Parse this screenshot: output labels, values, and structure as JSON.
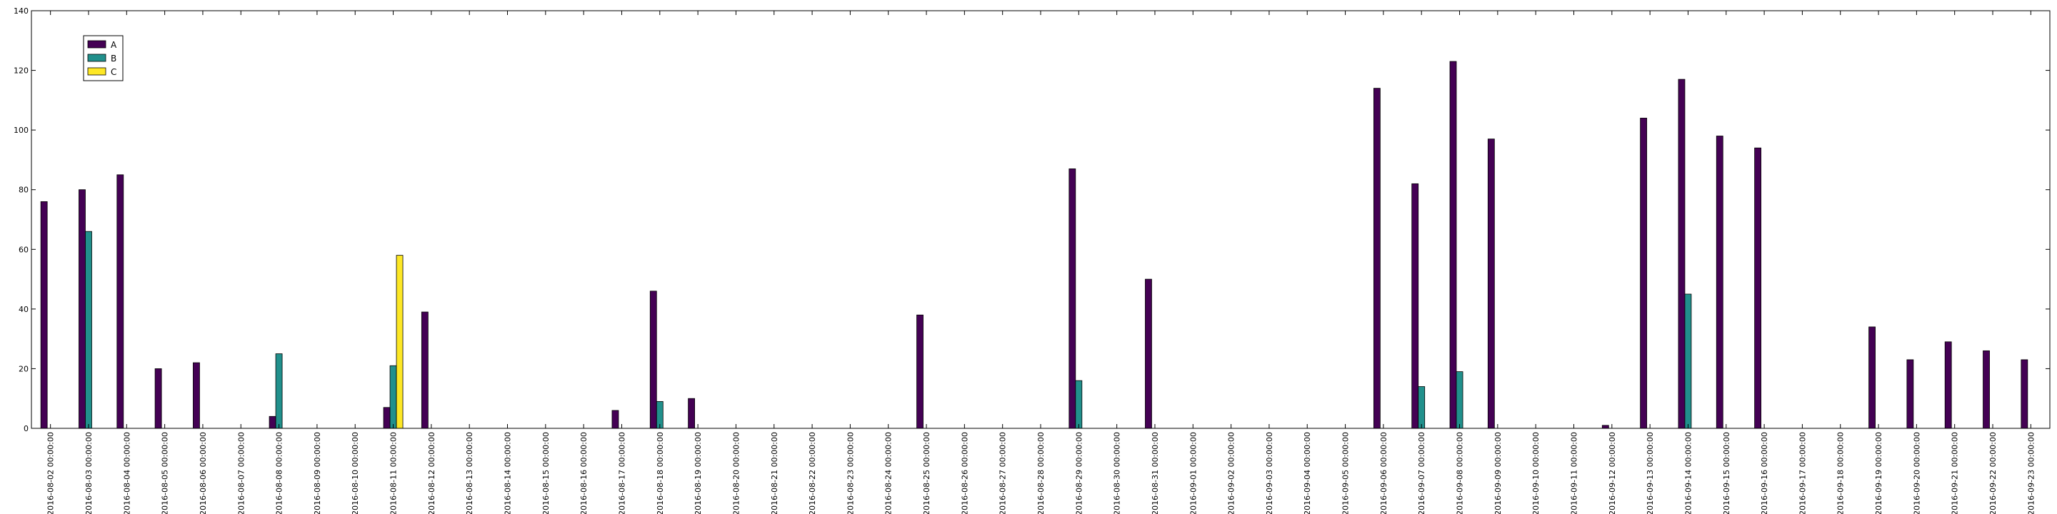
{
  "chart_data": {
    "type": "bar",
    "title": "",
    "xlabel": "",
    "ylabel": "",
    "ylim": [
      0,
      140
    ],
    "yticks": [
      0,
      20,
      40,
      60,
      80,
      100,
      120,
      140
    ],
    "grid": false,
    "legend_position": "upper-left",
    "categories": [
      "2016-08-02 00:00:00",
      "2016-08-03 00:00:00",
      "2016-08-04 00:00:00",
      "2016-08-05 00:00:00",
      "2016-08-06 00:00:00",
      "2016-08-07 00:00:00",
      "2016-08-08 00:00:00",
      "2016-08-09 00:00:00",
      "2016-08-10 00:00:00",
      "2016-08-11 00:00:00",
      "2016-08-12 00:00:00",
      "2016-08-13 00:00:00",
      "2016-08-14 00:00:00",
      "2016-08-15 00:00:00",
      "2016-08-16 00:00:00",
      "2016-08-17 00:00:00",
      "2016-08-18 00:00:00",
      "2016-08-19 00:00:00",
      "2016-08-20 00:00:00",
      "2016-08-21 00:00:00",
      "2016-08-22 00:00:00",
      "2016-08-23 00:00:00",
      "2016-08-24 00:00:00",
      "2016-08-25 00:00:00",
      "2016-08-26 00:00:00",
      "2016-08-27 00:00:00",
      "2016-08-28 00:00:00",
      "2016-08-29 00:00:00",
      "2016-08-30 00:00:00",
      "2016-08-31 00:00:00",
      "2016-09-01 00:00:00",
      "2016-09-02 00:00:00",
      "2016-09-03 00:00:00",
      "2016-09-04 00:00:00",
      "2016-09-05 00:00:00",
      "2016-09-06 00:00:00",
      "2016-09-07 00:00:00",
      "2016-09-08 00:00:00",
      "2016-09-09 00:00:00",
      "2016-09-10 00:00:00",
      "2016-09-11 00:00:00",
      "2016-09-12 00:00:00",
      "2016-09-13 00:00:00",
      "2016-09-14 00:00:00",
      "2016-09-15 00:00:00",
      "2016-09-16 00:00:00",
      "2016-09-17 00:00:00",
      "2016-09-18 00:00:00",
      "2016-09-19 00:00:00",
      "2016-09-20 00:00:00",
      "2016-09-21 00:00:00",
      "2016-09-22 00:00:00",
      "2016-09-23 00:00:00"
    ],
    "series": [
      {
        "name": "A",
        "color": "#440154",
        "values": [
          76,
          80,
          85,
          20,
          22,
          0,
          4,
          0,
          0,
          7,
          39,
          0,
          0,
          0,
          0,
          6,
          46,
          10,
          0,
          0,
          0,
          0,
          0,
          38,
          0,
          0,
          0,
          87,
          0,
          50,
          0,
          0,
          0,
          0,
          0,
          114,
          82,
          123,
          97,
          0,
          0,
          1,
          104,
          117,
          98,
          94,
          0,
          0,
          34,
          23,
          29,
          26,
          23
        ]
      },
      {
        "name": "B",
        "color": "#21908c",
        "values": [
          0,
          66,
          0,
          0,
          0,
          0,
          25,
          0,
          0,
          21,
          0,
          0,
          0,
          0,
          0,
          0,
          9,
          0,
          0,
          0,
          0,
          0,
          0,
          0,
          0,
          0,
          0,
          16,
          0,
          0,
          0,
          0,
          0,
          0,
          0,
          0,
          14,
          19,
          0,
          0,
          0,
          0,
          0,
          45,
          0,
          0,
          0,
          0,
          0,
          0,
          0,
          0,
          0
        ]
      },
      {
        "name": "C",
        "color": "#fde725",
        "values": [
          0,
          0,
          0,
          0,
          0,
          0,
          0,
          0,
          0,
          58,
          0,
          0,
          0,
          0,
          0,
          0,
          0,
          0,
          0,
          0,
          0,
          0,
          0,
          0,
          0,
          0,
          0,
          0,
          0,
          0,
          0,
          0,
          0,
          0,
          0,
          0,
          0,
          0,
          0,
          0,
          0,
          0,
          0,
          0,
          0,
          0,
          0,
          0,
          0,
          0,
          0,
          0,
          0
        ]
      }
    ]
  }
}
